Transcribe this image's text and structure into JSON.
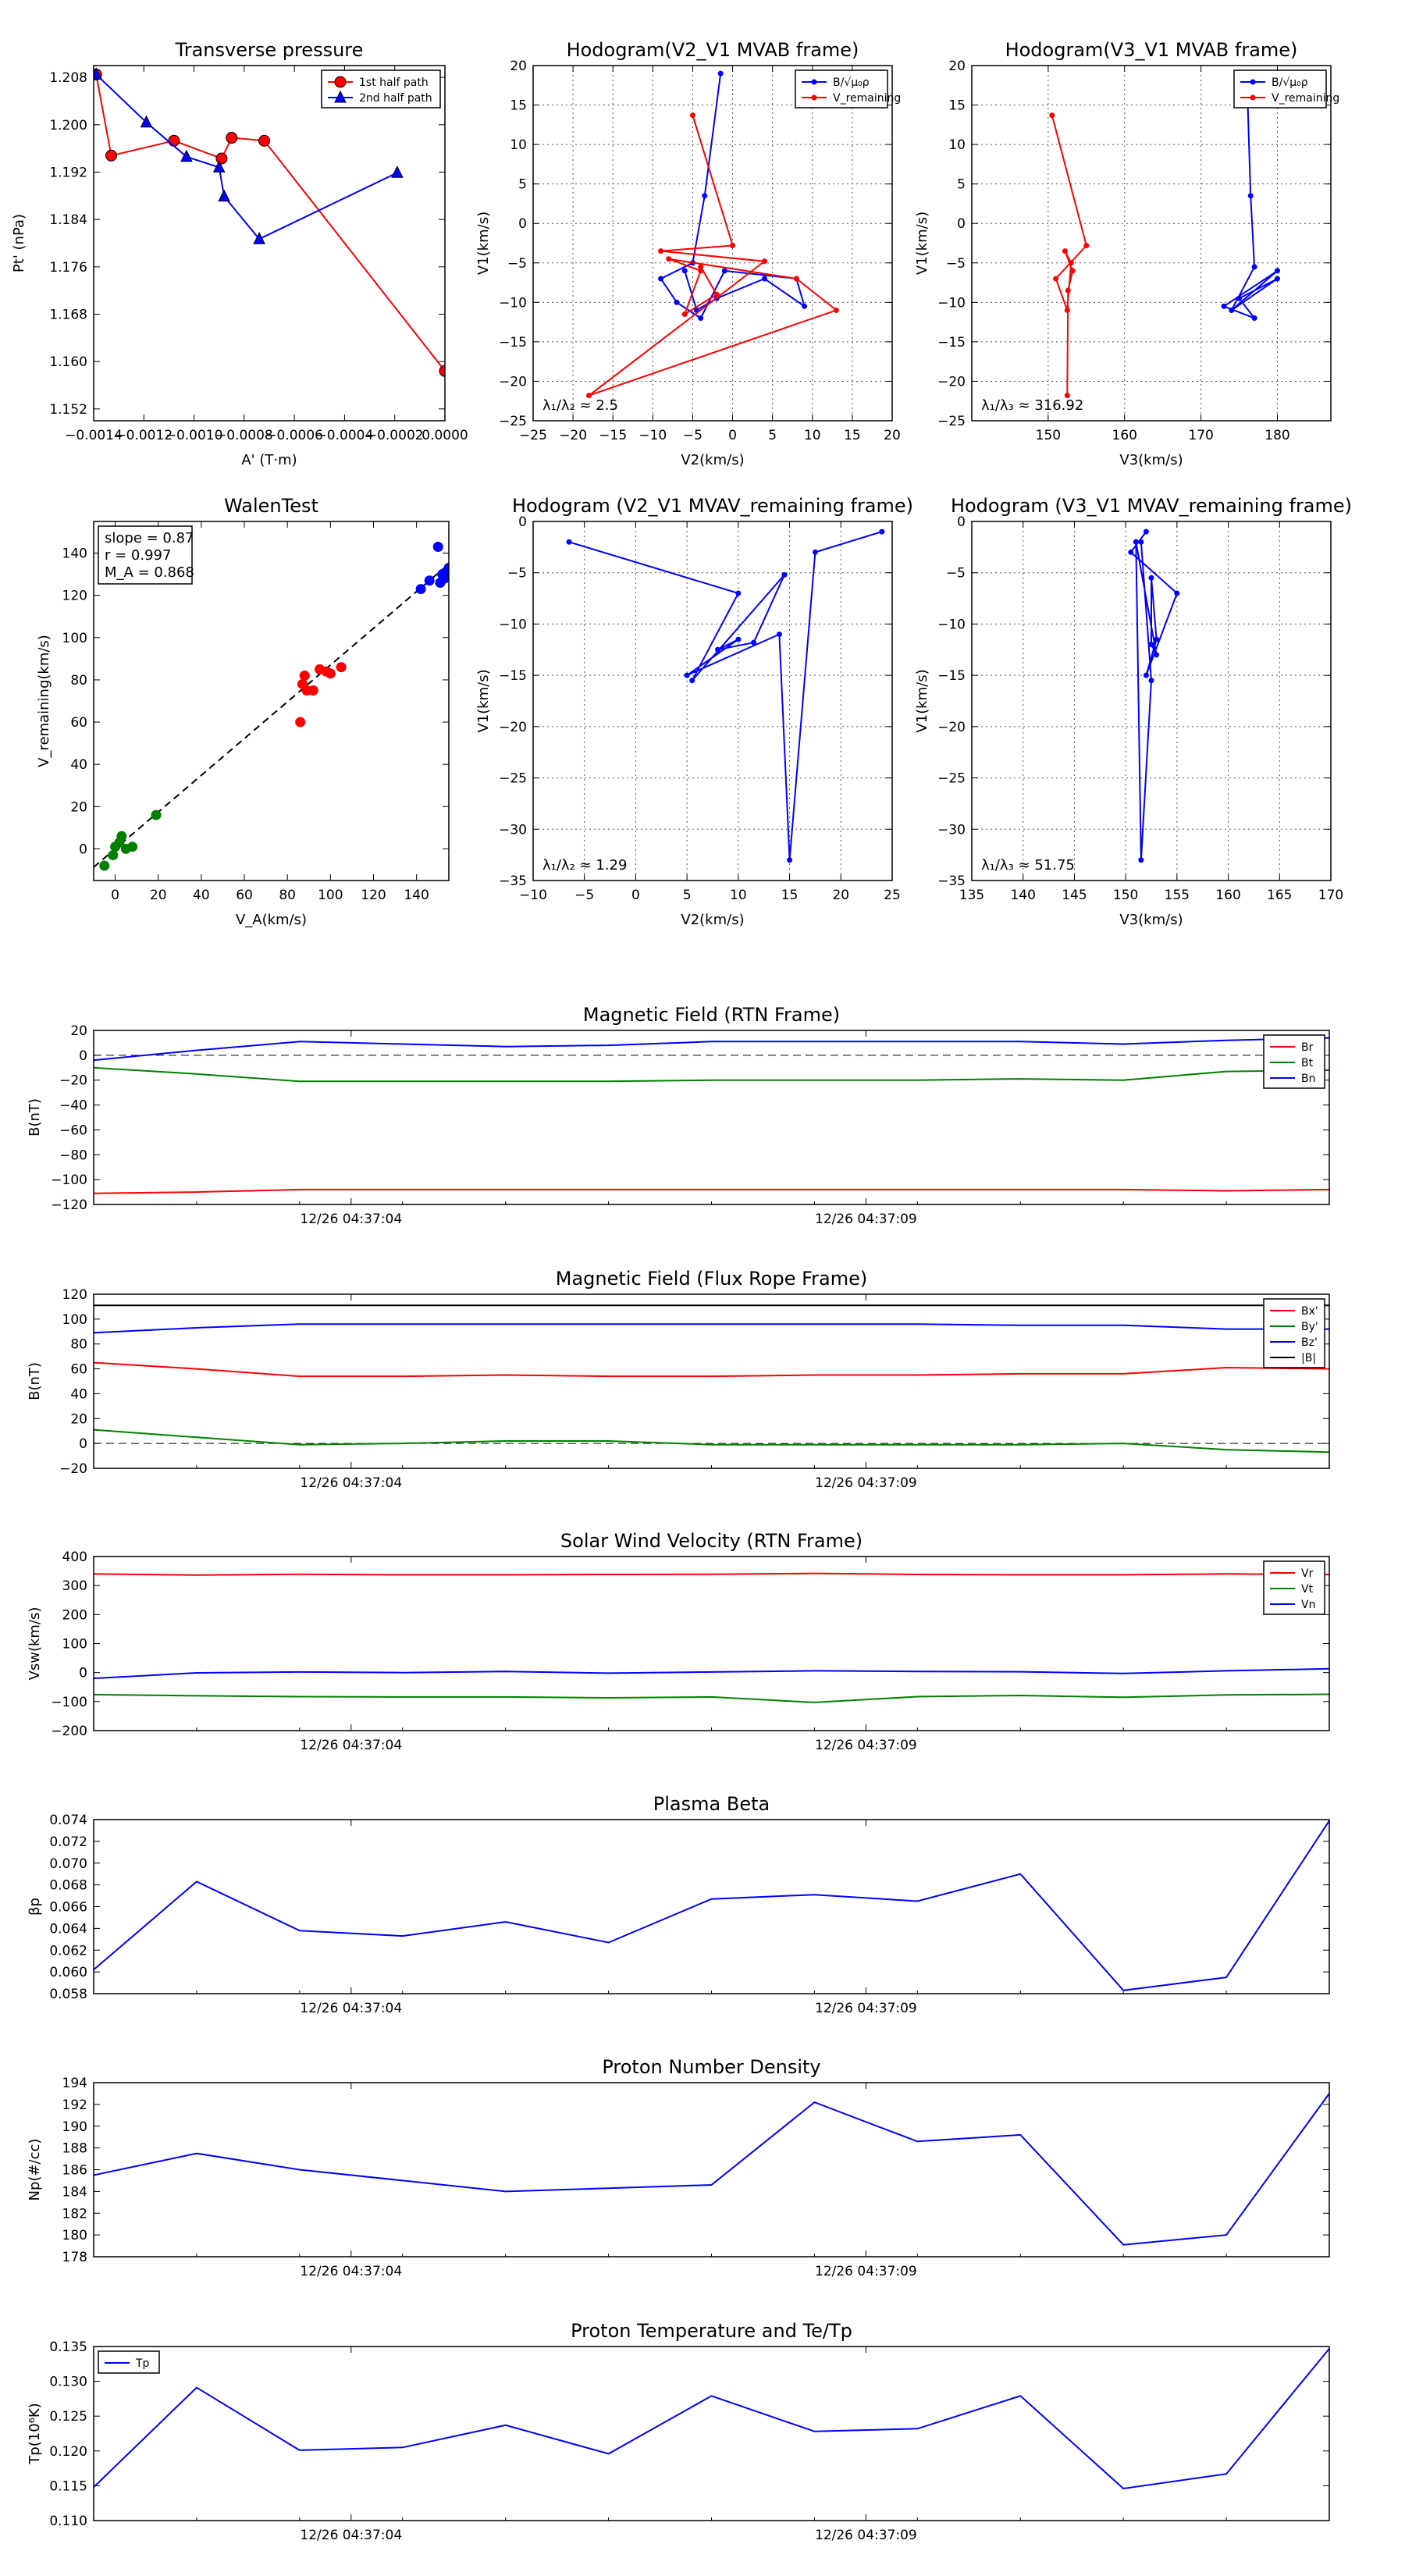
{
  "colors": {
    "red": "#ff0000",
    "green": "#008000",
    "blue": "#0000ff",
    "black": "#000000",
    "grid": "#888888"
  },
  "chart_data": [
    {
      "id": "transverse-pressure",
      "type": "line",
      "title": "Transverse pressure",
      "xlabel": "A' (T·m)",
      "ylabel": "Pt' (nPa)",
      "xlim": [
        -0.0014,
        0.0
      ],
      "ylim": [
        1.15,
        1.21
      ],
      "xticks": [
        -0.0014,
        -0.0012,
        -0.001,
        -0.0008,
        -0.0006,
        -0.0004,
        -0.0002,
        0.0
      ],
      "xtick_labels": [
        "−0.0014",
        "−0.0012",
        "−0.0010",
        "−0.0008",
        "−0.0006",
        "−0.0004",
        "−0.0002",
        "0.0000"
      ],
      "yticks": [
        1.152,
        1.16,
        1.168,
        1.176,
        1.184,
        1.192,
        1.2,
        1.208
      ],
      "ytick_labels": [
        "1.152",
        "1.160",
        "1.168",
        "1.176",
        "1.184",
        "1.192",
        "1.200",
        "1.208"
      ],
      "grid": false,
      "legend": "top-right",
      "series": [
        {
          "name": "1st half path",
          "color": "#ff0000",
          "marker": "circle",
          "x": [
            -0.00139,
            -0.00133,
            -0.00108,
            -0.00089,
            -0.00085,
            -0.00072,
            0.0
          ],
          "y": [
            1.2085,
            1.1948,
            1.1973,
            1.1943,
            1.1978,
            1.1973,
            1.1584
          ]
        },
        {
          "name": "2nd half path",
          "color": "#0000ff",
          "marker": "triangle",
          "x": [
            -0.00139,
            -0.00119,
            -0.00103,
            -0.0009,
            -0.00088,
            -0.00074,
            -0.00019
          ],
          "y": [
            1.2085,
            1.2004,
            1.1946,
            1.1928,
            1.1879,
            1.1807,
            1.1919
          ]
        }
      ]
    },
    {
      "id": "hodogram-v2-v1",
      "type": "line",
      "title": "Hodogram(V2_V1 MVAB frame)",
      "xlabel": "V2(km/s)",
      "ylabel": "V1(km/s)",
      "xlim": [
        -25,
        20
      ],
      "ylim": [
        -25,
        20
      ],
      "xticks": [
        -25,
        -20,
        -15,
        -10,
        -5,
        0,
        5,
        10,
        15,
        20
      ],
      "yticks": [
        -25,
        -20,
        -15,
        -10,
        -5,
        0,
        5,
        10,
        15,
        20
      ],
      "grid": true,
      "legend": "top-right",
      "annotation": "λ₁/λ₂ ≈ 2.5",
      "series": [
        {
          "name": "B/√μ₀ρ",
          "color": "#0000ff",
          "marker": "dot",
          "x": [
            -1.5,
            -3.5,
            -5,
            -9,
            -7,
            -4,
            -1,
            8,
            9,
            4,
            -2,
            -4.5,
            -6
          ],
          "y": [
            19,
            3.5,
            -5,
            -7,
            -10,
            -12,
            -6,
            -7,
            -10.5,
            -7,
            -9.5,
            -11,
            -6
          ]
        },
        {
          "name": "V_remaining",
          "color": "#ff0000",
          "marker": "dot",
          "x": [
            -5,
            0,
            -9,
            4,
            -18,
            13,
            8,
            -8,
            -4,
            -6,
            -2,
            -4
          ],
          "y": [
            13.7,
            -2.8,
            -3.5,
            -4.8,
            -21.8,
            -11,
            -7,
            -4.5,
            -6,
            -11.5,
            -9,
            -5.5
          ]
        }
      ]
    },
    {
      "id": "hodogram-v3-v1",
      "type": "line",
      "title": "Hodogram(V3_V1 MVAB frame)",
      "xlabel": "V3(km/s)",
      "ylabel": "V1(km/s)",
      "xlim": [
        140,
        187
      ],
      "ylim": [
        -25,
        20
      ],
      "xticks": [
        150,
        160,
        170,
        180
      ],
      "yticks": [
        -25,
        -20,
        -15,
        -10,
        -5,
        0,
        5,
        10,
        15,
        20
      ],
      "grid": true,
      "legend": "top-right",
      "annotation": "λ₁/λ₃ ≈ 316.92",
      "series": [
        {
          "name": "B/√μ₀ρ",
          "color": "#0000ff",
          "marker": "dot",
          "x": [
            176,
            176.5,
            177,
            174,
            180,
            173,
            177,
            175,
            180,
            174
          ],
          "y": [
            19,
            3.5,
            -5.5,
            -11,
            -6,
            -10.5,
            -12,
            -9.5,
            -7,
            -11
          ]
        },
        {
          "name": "V_remaining",
          "color": "#ff0000",
          "marker": "dot",
          "x": [
            150.5,
            155,
            151,
            152.5,
            153,
            152.2,
            153.2,
            152.6,
            152.5
          ],
          "y": [
            13.7,
            -2.8,
            -7,
            -11,
            -5,
            -3.5,
            -6,
            -8.5,
            -21.8
          ]
        }
      ]
    },
    {
      "id": "walen-test",
      "type": "scatter",
      "title": "WalenTest",
      "xlabel": "V_A(km/s)",
      "ylabel": "V_remaining(km/s)",
      "xlim": [
        -10,
        155
      ],
      "ylim": [
        -15,
        155
      ],
      "xticks": [
        0,
        20,
        40,
        60,
        80,
        100,
        120,
        140
      ],
      "yticks": [
        0,
        20,
        40,
        60,
        80,
        100,
        120,
        140
      ],
      "grid": false,
      "annotation_lines": [
        "slope = 0.87",
        "r = 0.997",
        "M_A = 0.868"
      ],
      "fit": {
        "slope": 0.87,
        "x": [
          -10,
          155
        ]
      },
      "series": [
        {
          "name": "green",
          "color": "#008000",
          "x": [
            -5,
            -1,
            0,
            2,
            3,
            5,
            8,
            19
          ],
          "y": [
            -8,
            -3,
            1,
            3,
            6,
            0,
            1,
            16
          ]
        },
        {
          "name": "red",
          "color": "#ff0000",
          "x": [
            86,
            87,
            88,
            89,
            92,
            95,
            98,
            100,
            105
          ],
          "y": [
            60,
            78,
            82,
            75,
            75,
            85,
            84,
            83,
            86
          ]
        },
        {
          "name": "blue",
          "color": "#0000ff",
          "x": [
            142,
            146,
            150,
            151,
            152,
            153,
            154,
            155
          ],
          "y": [
            123,
            127,
            143,
            126,
            130,
            128,
            131,
            133
          ]
        }
      ]
    },
    {
      "id": "hodogram-mvav-v2-v1",
      "type": "line",
      "title": "Hodogram (V2_V1 MVAV_remaining frame)",
      "xlabel": "V2(km/s)",
      "ylabel": "V1(km/s)",
      "xlim": [
        -10,
        25
      ],
      "ylim": [
        -35,
        0
      ],
      "xticks": [
        -10,
        -5,
        0,
        5,
        10,
        15,
        20,
        25
      ],
      "yticks": [
        -35,
        -30,
        -25,
        -20,
        -15,
        -10,
        -5,
        0
      ],
      "grid": true,
      "annotation": "λ₁/λ₂ ≈ 1.29",
      "series": [
        {
          "name": "path",
          "color": "#0000ff",
          "marker": "dot",
          "x": [
            -6.5,
            10,
            5.5,
            14.5,
            11.5,
            8,
            10,
            5,
            14,
            15,
            17.5,
            24
          ],
          "y": [
            -2,
            -7,
            -15.5,
            -5.2,
            -11.8,
            -12.5,
            -11.5,
            -15,
            -11,
            -33,
            -3,
            -1
          ]
        }
      ]
    },
    {
      "id": "hodogram-mvav-v3-v1",
      "type": "line",
      "title": "Hodogram (V3_V1 MVAV_remaining frame)",
      "xlabel": "V3(km/s)",
      "ylabel": "V1(km/s)",
      "xlim": [
        135,
        170
      ],
      "ylim": [
        -35,
        0
      ],
      "xticks": [
        135,
        140,
        145,
        150,
        155,
        160,
        165,
        170
      ],
      "yticks": [
        -35,
        -30,
        -25,
        -20,
        -15,
        -10,
        -5,
        0
      ],
      "grid": true,
      "annotation": "λ₁/λ₃ ≈ 51.75",
      "series": [
        {
          "name": "path",
          "color": "#0000ff",
          "marker": "dot",
          "x": [
            152,
            150.5,
            155,
            152,
            153,
            152.5,
            152.5,
            153,
            151,
            151.5,
            152.5,
            151.5
          ],
          "y": [
            -1,
            -3,
            -7,
            -15,
            -11.5,
            -5.5,
            -12,
            -13,
            -2,
            -33,
            -15.5,
            -2
          ]
        }
      ]
    },
    {
      "id": "magnetic-field-rtn",
      "type": "line",
      "title": "Magnetic Field (RTN Frame)",
      "xlabel": "",
      "ylabel": "B(nT)",
      "ylim": [
        -120,
        20
      ],
      "yticks": [
        -120,
        -100,
        -80,
        -60,
        -40,
        -20,
        0,
        20
      ],
      "x": [
        0,
        1,
        2,
        3,
        4,
        5,
        6,
        7,
        8,
        9,
        10,
        11,
        12
      ],
      "xticks": [
        2.5,
        7.5
      ],
      "xtick_labels": [
        "12/26 04:37:04",
        "12/26 04:37:09"
      ],
      "zero_line": true,
      "legend": "top-right",
      "series": [
        {
          "name": "Br",
          "color": "#ff0000",
          "values": [
            -111,
            -110,
            -108,
            -108,
            -108,
            -108,
            -108,
            -108,
            -108,
            -108,
            -108,
            -109,
            -108
          ]
        },
        {
          "name": "Bt",
          "color": "#008000",
          "values": [
            -10,
            -15,
            -21,
            -21,
            -21,
            -21,
            -20,
            -20,
            -20,
            -19,
            -20,
            -13,
            -12
          ]
        },
        {
          "name": "Bn",
          "color": "#0000ff",
          "values": [
            -4,
            4,
            11,
            9,
            7,
            8,
            11,
            11,
            11,
            11,
            9,
            12,
            14
          ]
        }
      ]
    },
    {
      "id": "magnetic-field-flux-rope",
      "type": "line",
      "title": "Magnetic Field (Flux Rope Frame)",
      "xlabel": "",
      "ylabel": "B(nT)",
      "ylim": [
        -20,
        120
      ],
      "yticks": [
        -20,
        0,
        20,
        40,
        60,
        80,
        100,
        120
      ],
      "x": [
        0,
        1,
        2,
        3,
        4,
        5,
        6,
        7,
        8,
        9,
        10,
        11,
        12
      ],
      "xticks": [
        2.5,
        7.5
      ],
      "xtick_labels": [
        "12/26 04:37:04",
        "12/26 04:37:09"
      ],
      "zero_line": true,
      "legend": "top-right",
      "series": [
        {
          "name": "Bx'",
          "color": "#ff0000",
          "values": [
            65,
            60,
            54,
            54,
            55,
            54,
            54,
            55,
            55,
            56,
            56,
            61,
            60
          ]
        },
        {
          "name": "By'",
          "color": "#008000",
          "values": [
            11,
            5,
            -1,
            0,
            2,
            2,
            -1,
            -1,
            -1,
            -1,
            0,
            -5,
            -7
          ]
        },
        {
          "name": "Bz'",
          "color": "#0000ff",
          "values": [
            89,
            93,
            96,
            96,
            96,
            96,
            96,
            96,
            96,
            95,
            95,
            92,
            92
          ]
        },
        {
          "name": "|B|",
          "color": "#000000",
          "values": [
            111,
            111,
            111,
            111,
            111,
            111,
            111,
            111,
            111,
            111,
            111,
            111,
            111
          ]
        }
      ]
    },
    {
      "id": "solar-wind-velocity",
      "type": "line",
      "title": "Solar Wind Velocity (RTN Frame)",
      "xlabel": "",
      "ylabel": "Vsw(km/s)",
      "ylim": [
        -200,
        400
      ],
      "yticks": [
        -200,
        -100,
        0,
        100,
        200,
        300,
        400
      ],
      "x": [
        0,
        1,
        2,
        3,
        4,
        5,
        6,
        7,
        8,
        9,
        10,
        11,
        12
      ],
      "xticks": [
        2.5,
        7.5
      ],
      "xtick_labels": [
        "12/26 04:37:04",
        "12/26 04:37:09"
      ],
      "legend": "top-right",
      "series": [
        {
          "name": "Vr",
          "color": "#ff0000",
          "values": [
            340,
            336,
            339,
            337,
            337,
            338,
            339,
            342,
            338,
            337,
            337,
            340,
            338
          ]
        },
        {
          "name": "Vt",
          "color": "#008000",
          "values": [
            -76,
            -80,
            -83,
            -84,
            -84,
            -87,
            -84,
            -103,
            -83,
            -79,
            -85,
            -77,
            -75
          ]
        },
        {
          "name": "Vn",
          "color": "#0000ff",
          "values": [
            -20,
            -1,
            2,
            0,
            4,
            -2,
            2,
            6,
            4,
            3,
            -3,
            6,
            13
          ]
        }
      ]
    },
    {
      "id": "plasma-beta",
      "type": "line",
      "title": "Plasma Beta",
      "xlabel": "",
      "ylabel": "βp",
      "ylim": [
        0.058,
        0.074
      ],
      "yticks": [
        0.058,
        0.06,
        0.062,
        0.064,
        0.066,
        0.068,
        0.07,
        0.072,
        0.074
      ],
      "ytick_labels": [
        "0.058",
        "0.060",
        "0.062",
        "0.064",
        "0.066",
        "0.068",
        "0.070",
        "0.072",
        "0.074"
      ],
      "x": [
        0,
        1,
        2,
        3,
        4,
        5,
        6,
        7,
        8,
        9,
        10,
        11,
        12
      ],
      "xticks": [
        2.5,
        7.5
      ],
      "xtick_labels": [
        "12/26 04:37:04",
        "12/26 04:37:09"
      ],
      "series": [
        {
          "name": "beta",
          "color": "#0000ff",
          "values": [
            0.0602,
            0.0683,
            0.0638,
            0.0633,
            0.0646,
            0.0627,
            0.0667,
            0.0671,
            0.0665,
            0.069,
            0.0583,
            0.0595,
            0.0739
          ]
        }
      ]
    },
    {
      "id": "proton-density",
      "type": "line",
      "title": "Proton Number Density",
      "xlabel": "",
      "ylabel": "Np(#/cc)",
      "ylim": [
        178,
        194
      ],
      "yticks": [
        178,
        180,
        182,
        184,
        186,
        188,
        190,
        192,
        194
      ],
      "x": [
        0,
        1,
        2,
        3,
        4,
        5,
        6,
        7,
        8,
        9,
        10,
        11,
        12
      ],
      "xticks": [
        2.5,
        7.5
      ],
      "xtick_labels": [
        "12/26 04:37:04",
        "12/26 04:37:09"
      ],
      "series": [
        {
          "name": "Np",
          "color": "#0000ff",
          "values": [
            185.5,
            187.5,
            186,
            185,
            184,
            184.3,
            184.6,
            192.2,
            188.6,
            189.2,
            179.1,
            180,
            193
          ]
        }
      ]
    },
    {
      "id": "proton-temperature",
      "type": "line",
      "title": "Proton Temperature and Te/Tp",
      "xlabel": "",
      "ylabel": "Tp(10⁶K)",
      "ylim": [
        0.11,
        0.135
      ],
      "yticks": [
        0.11,
        0.115,
        0.12,
        0.125,
        0.13,
        0.135
      ],
      "ytick_labels": [
        "0.110",
        "0.115",
        "0.120",
        "0.125",
        "0.130",
        "0.135"
      ],
      "x": [
        0,
        1,
        2,
        3,
        4,
        5,
        6,
        7,
        8,
        9,
        10,
        11,
        12
      ],
      "xticks": [
        2.5,
        7.5
      ],
      "xtick_labels": [
        "12/26 04:37:04",
        "12/26 04:37:09"
      ],
      "legend": "top-left",
      "series": [
        {
          "name": "Tp",
          "color": "#0000ff",
          "values": [
            0.1148,
            0.1291,
            0.1201,
            0.1205,
            0.1237,
            0.1196,
            0.1279,
            0.1228,
            0.1232,
            0.1279,
            0.1146,
            0.1167,
            0.1347
          ]
        }
      ]
    }
  ]
}
